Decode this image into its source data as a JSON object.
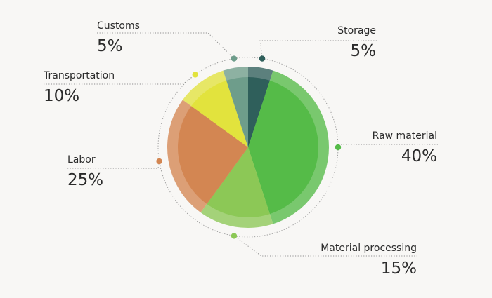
{
  "chart_data": {
    "type": "pie",
    "slices": [
      {
        "label": "Storage",
        "value": 5,
        "display": "5%",
        "color": "#2f5f5b"
      },
      {
        "label": "Raw material",
        "value": 40,
        "display": "40%",
        "color": "#55bb48"
      },
      {
        "label": "Material processing",
        "value": 15,
        "display": "15%",
        "color": "#8cc856"
      },
      {
        "label": "Labor",
        "value": 25,
        "display": "25%",
        "color": "#d38652"
      },
      {
        "label": "Transportation",
        "value": 10,
        "display": "10%",
        "color": "#e2e33d"
      },
      {
        "label": "Customs",
        "value": 5,
        "display": "5%",
        "color": "#6e9d8b"
      }
    ],
    "start_angle_deg": 0,
    "direction": "clockwise"
  }
}
